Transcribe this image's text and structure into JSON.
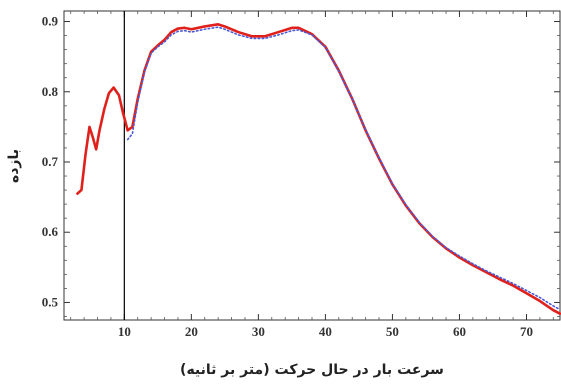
{
  "chart_data": {
    "type": "line",
    "xlabel": "سرعت بار در حال حرکت (متر بر ثانیه)",
    "ylabel": "بازده",
    "xlim": [
      1,
      75
    ],
    "ylim": [
      0.475,
      0.915
    ],
    "x_ticks": [
      10,
      20,
      30,
      40,
      50,
      60,
      70
    ],
    "y_ticks": [
      0.5,
      0.6,
      0.7,
      0.8,
      0.9
    ],
    "x_tick_labels": [
      "10",
      "20",
      "30",
      "40",
      "50",
      "60",
      "70"
    ],
    "y_tick_labels": [
      "0.5",
      "0.6",
      "0.7",
      "0.8",
      "0.9"
    ],
    "vertical_line_x": 10,
    "grid": false,
    "frame_ticks_on_all_sides": true,
    "series": [
      {
        "style": "solid",
        "color": "#e0201b",
        "points": [
          [
            3,
            0.655
          ],
          [
            3.6,
            0.66
          ],
          [
            4.2,
            0.71
          ],
          [
            4.8,
            0.75
          ],
          [
            5.3,
            0.735
          ],
          [
            5.8,
            0.718
          ],
          [
            6.3,
            0.745
          ],
          [
            7.0,
            0.775
          ],
          [
            7.7,
            0.798
          ],
          [
            8.4,
            0.806
          ],
          [
            9.2,
            0.795
          ],
          [
            9.8,
            0.77
          ],
          [
            10.5,
            0.745
          ],
          [
            11.2,
            0.75
          ],
          [
            12,
            0.79
          ],
          [
            13,
            0.83
          ],
          [
            14,
            0.857
          ],
          [
            15,
            0.866
          ],
          [
            16,
            0.874
          ],
          [
            17,
            0.885
          ],
          [
            18,
            0.89
          ],
          [
            19,
            0.891
          ],
          [
            20,
            0.889
          ],
          [
            22,
            0.893
          ],
          [
            24,
            0.896
          ],
          [
            25,
            0.893
          ],
          [
            27,
            0.885
          ],
          [
            29,
            0.879
          ],
          [
            31,
            0.879
          ],
          [
            33,
            0.885
          ],
          [
            35,
            0.891
          ],
          [
            36,
            0.891
          ],
          [
            38,
            0.882
          ],
          [
            40,
            0.864
          ],
          [
            42,
            0.83
          ],
          [
            44,
            0.79
          ],
          [
            46,
            0.745
          ],
          [
            48,
            0.705
          ],
          [
            50,
            0.668
          ],
          [
            52,
            0.638
          ],
          [
            54,
            0.613
          ],
          [
            56,
            0.593
          ],
          [
            58,
            0.577
          ],
          [
            60,
            0.564
          ],
          [
            62,
            0.553
          ],
          [
            64,
            0.543
          ],
          [
            66,
            0.533
          ],
          [
            68,
            0.524
          ],
          [
            70,
            0.513
          ],
          [
            72,
            0.502
          ],
          [
            74,
            0.489
          ],
          [
            75,
            0.484
          ]
        ]
      },
      {
        "style": "dotted",
        "color": "#4a5ad8",
        "points": [
          [
            10.5,
            0.732
          ],
          [
            11.2,
            0.74
          ],
          [
            12,
            0.785
          ],
          [
            13,
            0.828
          ],
          [
            14,
            0.855
          ],
          [
            15,
            0.864
          ],
          [
            16,
            0.871
          ],
          [
            17,
            0.881
          ],
          [
            18,
            0.886
          ],
          [
            19,
            0.887
          ],
          [
            20,
            0.885
          ],
          [
            22,
            0.889
          ],
          [
            24,
            0.892
          ],
          [
            25,
            0.889
          ],
          [
            27,
            0.881
          ],
          [
            29,
            0.876
          ],
          [
            31,
            0.876
          ],
          [
            33,
            0.881
          ],
          [
            35,
            0.887
          ],
          [
            36,
            0.888
          ],
          [
            38,
            0.881
          ],
          [
            40,
            0.863
          ],
          [
            42,
            0.829
          ],
          [
            44,
            0.79
          ],
          [
            46,
            0.746
          ],
          [
            48,
            0.706
          ],
          [
            50,
            0.669
          ],
          [
            52,
            0.639
          ],
          [
            54,
            0.614
          ],
          [
            56,
            0.594
          ],
          [
            58,
            0.578
          ],
          [
            60,
            0.566
          ],
          [
            62,
            0.555
          ],
          [
            64,
            0.545
          ],
          [
            66,
            0.536
          ],
          [
            68,
            0.527
          ],
          [
            70,
            0.517
          ],
          [
            72,
            0.507
          ],
          [
            74,
            0.495
          ],
          [
            75,
            0.49
          ]
        ]
      }
    ]
  }
}
